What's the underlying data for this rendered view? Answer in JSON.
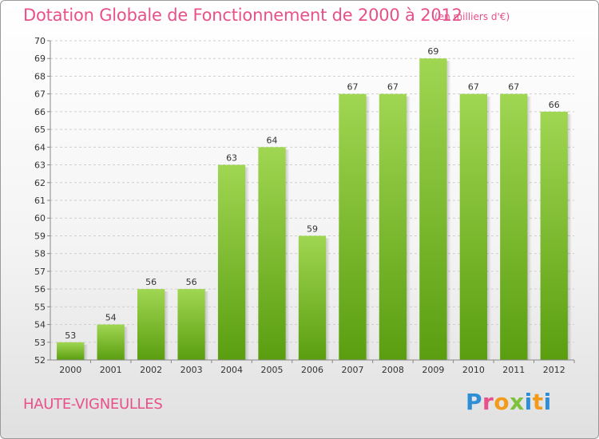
{
  "header": {
    "title": "Dotation Globale de Fonctionnement de 2000 à 2012",
    "subtitle": "(en milliers d'€)"
  },
  "footer": {
    "commune": "HAUTE-VIGNEULLES",
    "logo_text": "Proxiti"
  },
  "colors": {
    "title": "#e8508a",
    "bar_top": "#a0d652",
    "bar_bottom": "#5a9e10",
    "grid": "#cfcfcf",
    "axis": "#888888"
  },
  "chart_data": {
    "type": "bar",
    "categories": [
      "2000",
      "2001",
      "2002",
      "2003",
      "2004",
      "2005",
      "2006",
      "2007",
      "2008",
      "2009",
      "2010",
      "2011",
      "2012"
    ],
    "values": [
      53,
      54,
      56,
      56,
      63,
      64,
      59,
      67,
      67,
      69,
      67,
      67,
      66
    ],
    "ylim": [
      52,
      70
    ],
    "yticks": [
      52,
      53,
      54,
      55,
      56,
      57,
      58,
      59,
      60,
      61,
      62,
      63,
      64,
      65,
      66,
      67,
      68,
      69,
      70
    ],
    "grid": true,
    "title": "Dotation Globale de Fonctionnement de 2000 à 2012",
    "subtitle": "(en milliers d'€)",
    "xlabel": "",
    "ylabel": ""
  }
}
